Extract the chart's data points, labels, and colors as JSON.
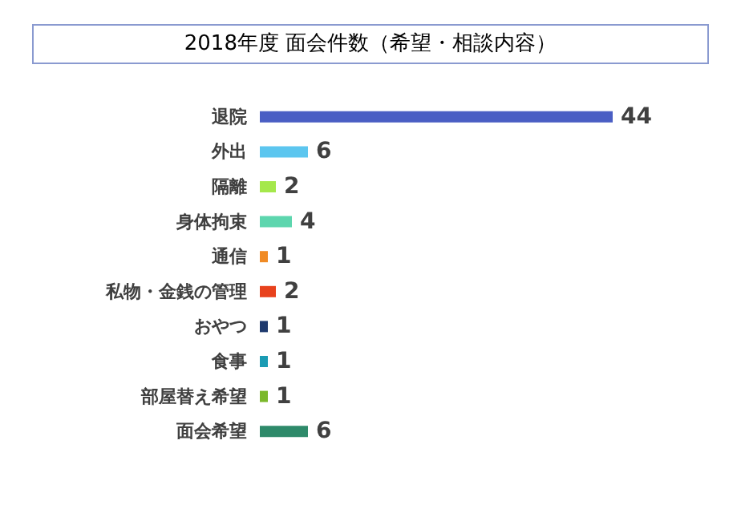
{
  "chart_data": {
    "type": "bar",
    "orientation": "horizontal",
    "title": "2018年度 面会件数（希望・相談内容）",
    "categories": [
      "退院",
      "外出",
      "隔離",
      "身体拘束",
      "通信",
      "私物・金銭の管理",
      "おやつ",
      "食事",
      "部屋替え希望",
      "面会希望"
    ],
    "values": [
      44,
      6,
      2,
      4,
      1,
      2,
      1,
      1,
      1,
      6
    ],
    "colors": [
      "#4a5ec4",
      "#5cc6ef",
      "#a5e84b",
      "#5dd6ae",
      "#f08b25",
      "#e8421d",
      "#1f3a6e",
      "#1a9bb3",
      "#7bb82b",
      "#2e8a6a"
    ],
    "data_labels": true
  }
}
